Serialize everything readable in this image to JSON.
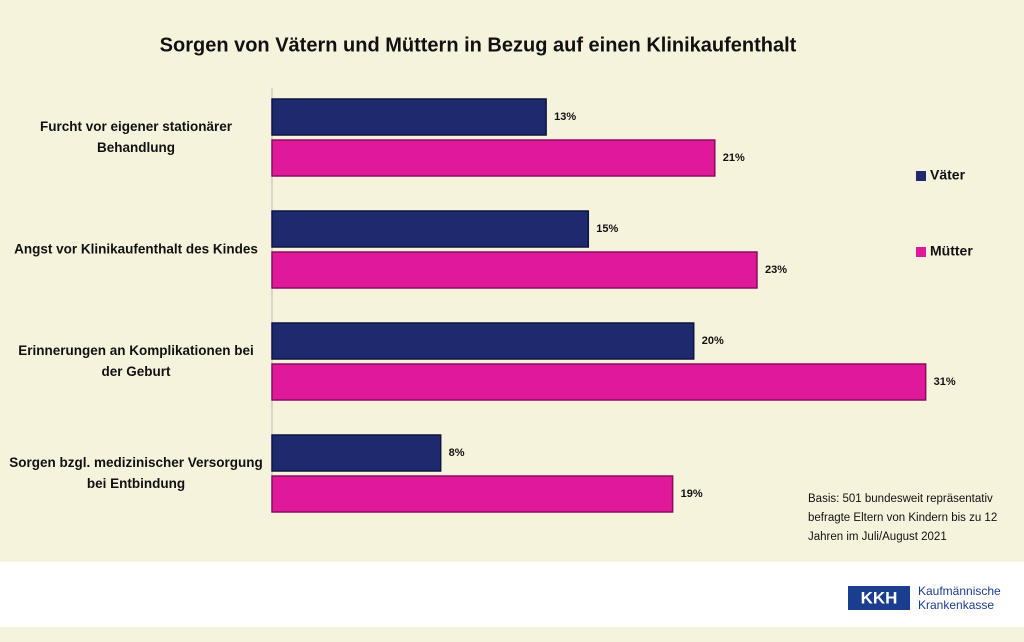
{
  "chart_data": {
    "type": "bar",
    "orientation": "horizontal",
    "title": "Sorgen von Vätern und Müttern in Bezug auf einen Klinikaufenthalt",
    "categories": [
      "Furcht vor eigener stationärer Behandlung",
      "Angst vor Klinikaufenthalt des Kindes",
      "Erinnerungen an Komplikationen bei der Geburt",
      "Sorgen bzgl. medizinischer Versorgung bei Entbindung"
    ],
    "series": [
      {
        "name": "Väter",
        "color": "#1f2a6e",
        "values": [
          13,
          15,
          20,
          8
        ],
        "value_labels": [
          "13%",
          "15%",
          "20%",
          "8%"
        ]
      },
      {
        "name": "Mütter",
        "color": "#e0189a",
        "values": [
          21,
          23,
          31,
          19
        ],
        "value_labels": [
          "21%",
          "23%",
          "31%",
          "19%"
        ]
      }
    ],
    "xlim": [
      0,
      35
    ],
    "note": "Basis: 501 bundesweit repräsentativ befragte Eltern von Kindern bis zu 12 Jahren im Juli/August 2021"
  },
  "logo": {
    "mark": "KKH",
    "line1": "Kaufmännische",
    "line2": "Krankenkasse"
  }
}
